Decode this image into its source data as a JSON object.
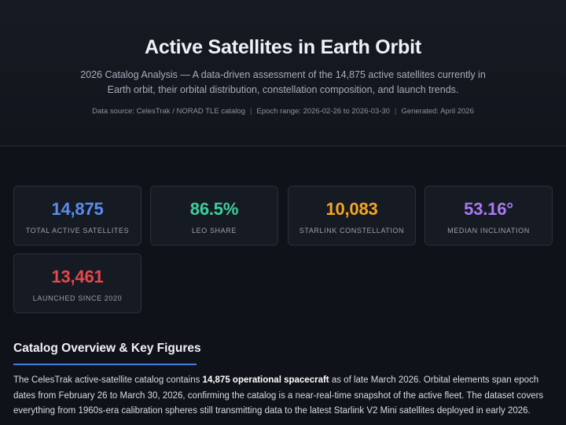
{
  "header": {
    "title": "Active Satellites in Earth Orbit",
    "subtitle": "2026 Catalog Analysis — A data-driven assessment of the 14,875 active satellites currently in Earth orbit, their orbital distribution, constellation composition, and launch trends.",
    "meta": {
      "source": "Data source: CelesTrak / NORAD TLE catalog",
      "epoch": "Epoch range: 2026-02-26 to 2026-03-30",
      "generated": "Generated: April 2026",
      "separator": "|"
    }
  },
  "stats": [
    {
      "value": "14,875",
      "label": "Total Active Satellites",
      "color": "#5b8def"
    },
    {
      "value": "86.5%",
      "label": "LEO Share",
      "color": "#3ecf9e"
    },
    {
      "value": "10,083",
      "label": "Starlink Constellation",
      "color": "#f5a623"
    },
    {
      "value": "53.16°",
      "label": "Median Inclination",
      "color": "#a77bf3"
    },
    {
      "value": "13,461",
      "label": "Launched Since 2020",
      "color": "#e5484d"
    }
  ],
  "overview": {
    "heading": "Catalog Overview & Key Figures",
    "text_before": "The CelesTrak active-satellite catalog contains ",
    "text_bold": "14,875 operational spacecraft",
    "text_after": " as of late March 2026. Orbital elements span epoch dates from February 26 to March 30, 2026, confirming the catalog is a near-real-time snapshot of the active fleet. The dataset covers everything from 1960s-era calibration spheres still transmitting data to the latest Starlink V2 Mini satellites deployed in early 2026."
  }
}
